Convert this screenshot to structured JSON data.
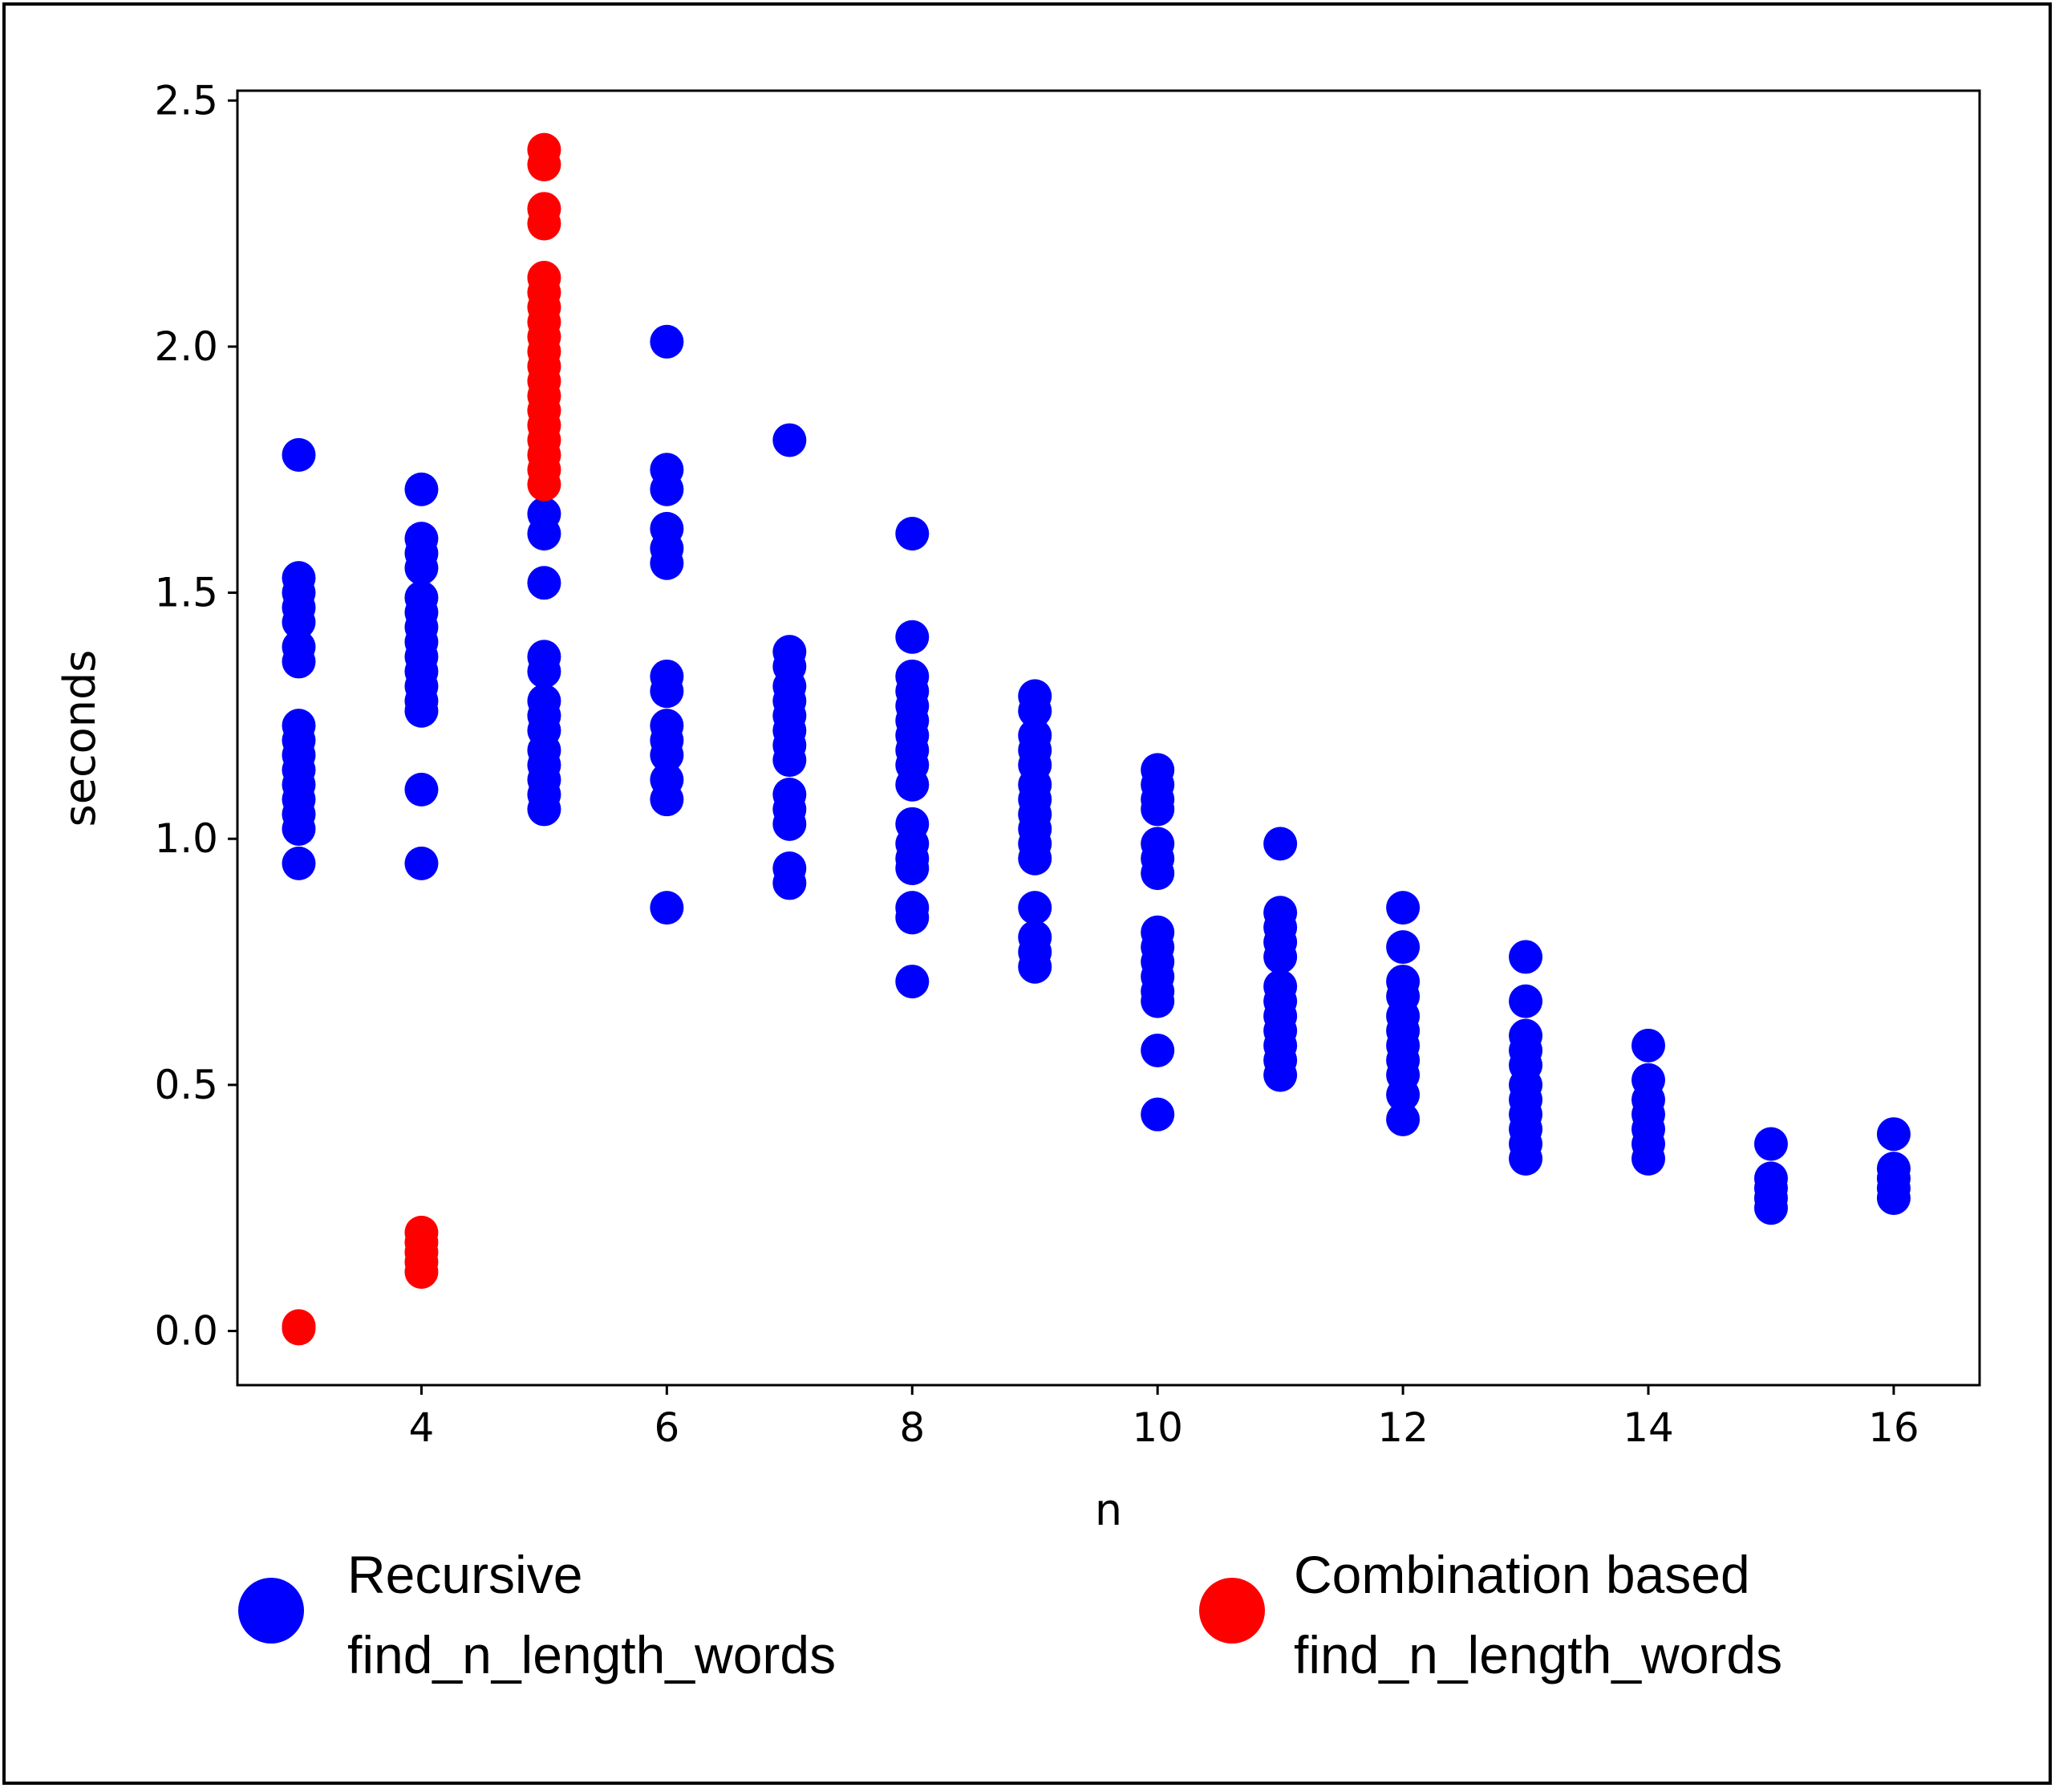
{
  "chart_data": {
    "type": "scatter",
    "title": "",
    "xlabel": "n",
    "ylabel": "seconds",
    "xlim": [
      2.5,
      16.7
    ],
    "ylim": [
      -0.11,
      2.52
    ],
    "xticks": [
      4,
      6,
      8,
      10,
      12,
      14,
      16
    ],
    "yticks": [
      0.0,
      0.5,
      1.0,
      1.5,
      2.0,
      2.5
    ],
    "xtick_labels": [
      "4",
      "6",
      "8",
      "10",
      "12",
      "14",
      "16"
    ],
    "ytick_labels": [
      "0.0",
      "0.5",
      "1.0",
      "1.5",
      "2.0",
      "2.5"
    ],
    "grid": false,
    "legend_position": "bottom",
    "series": [
      {
        "name": "Recursive find_n_length_words",
        "legend_lines": [
          "Recursive",
          "find_n_length_words"
        ],
        "color": "#0000ff",
        "points": [
          [
            3,
            1.78
          ],
          [
            3,
            1.53
          ],
          [
            3,
            1.5
          ],
          [
            3,
            1.47
          ],
          [
            3,
            1.44
          ],
          [
            3,
            1.39
          ],
          [
            3,
            1.36
          ],
          [
            3,
            1.23
          ],
          [
            3,
            1.2
          ],
          [
            3,
            1.17
          ],
          [
            3,
            1.14
          ],
          [
            3,
            1.11
          ],
          [
            3,
            1.08
          ],
          [
            3,
            1.05
          ],
          [
            3,
            1.02
          ],
          [
            3,
            0.95
          ],
          [
            4,
            1.71
          ],
          [
            4,
            1.61
          ],
          [
            4,
            1.58
          ],
          [
            4,
            1.55
          ],
          [
            4,
            1.49
          ],
          [
            4,
            1.46
          ],
          [
            4,
            1.43
          ],
          [
            4,
            1.4
          ],
          [
            4,
            1.37
          ],
          [
            4,
            1.34
          ],
          [
            4,
            1.31
          ],
          [
            4,
            1.28
          ],
          [
            4,
            1.26
          ],
          [
            4,
            1.1
          ],
          [
            4,
            0.95
          ],
          [
            5,
            1.66
          ],
          [
            5,
            1.62
          ],
          [
            5,
            1.52
          ],
          [
            5,
            1.37
          ],
          [
            5,
            1.34
          ],
          [
            5,
            1.28
          ],
          [
            5,
            1.25
          ],
          [
            5,
            1.22
          ],
          [
            5,
            1.18
          ],
          [
            5,
            1.15
          ],
          [
            5,
            1.12
          ],
          [
            5,
            1.09
          ],
          [
            5,
            1.06
          ],
          [
            6,
            2.01
          ],
          [
            6,
            1.75
          ],
          [
            6,
            1.71
          ],
          [
            6,
            1.63
          ],
          [
            6,
            1.59
          ],
          [
            6,
            1.56
          ],
          [
            6,
            1.33
          ],
          [
            6,
            1.3
          ],
          [
            6,
            1.23
          ],
          [
            6,
            1.2
          ],
          [
            6,
            1.17
          ],
          [
            6,
            1.12
          ],
          [
            6,
            1.08
          ],
          [
            6,
            0.86
          ],
          [
            7,
            1.81
          ],
          [
            7,
            1.38
          ],
          [
            7,
            1.35
          ],
          [
            7,
            1.31
          ],
          [
            7,
            1.28
          ],
          [
            7,
            1.25
          ],
          [
            7,
            1.22
          ],
          [
            7,
            1.19
          ],
          [
            7,
            1.16
          ],
          [
            7,
            1.09
          ],
          [
            7,
            1.06
          ],
          [
            7,
            1.03
          ],
          [
            7,
            0.94
          ],
          [
            7,
            0.91
          ],
          [
            8,
            1.62
          ],
          [
            8,
            1.41
          ],
          [
            8,
            1.33
          ],
          [
            8,
            1.3
          ],
          [
            8,
            1.27
          ],
          [
            8,
            1.24
          ],
          [
            8,
            1.21
          ],
          [
            8,
            1.18
          ],
          [
            8,
            1.15
          ],
          [
            8,
            1.11
          ],
          [
            8,
            1.03
          ],
          [
            8,
            0.99
          ],
          [
            8,
            0.96
          ],
          [
            8,
            0.94
          ],
          [
            8,
            0.86
          ],
          [
            8,
            0.84
          ],
          [
            8,
            0.71
          ],
          [
            9,
            1.29
          ],
          [
            9,
            1.26
          ],
          [
            9,
            1.21
          ],
          [
            9,
            1.18
          ],
          [
            9,
            1.15
          ],
          [
            9,
            1.11
          ],
          [
            9,
            1.08
          ],
          [
            9,
            1.05
          ],
          [
            9,
            1.02
          ],
          [
            9,
            0.99
          ],
          [
            9,
            0.96
          ],
          [
            9,
            0.86
          ],
          [
            9,
            0.8
          ],
          [
            9,
            0.77
          ],
          [
            9,
            0.74
          ],
          [
            10,
            1.14
          ],
          [
            10,
            1.11
          ],
          [
            10,
            1.08
          ],
          [
            10,
            1.06
          ],
          [
            10,
            0.99
          ],
          [
            10,
            0.96
          ],
          [
            10,
            0.93
          ],
          [
            10,
            0.81
          ],
          [
            10,
            0.78
          ],
          [
            10,
            0.75
          ],
          [
            10,
            0.72
          ],
          [
            10,
            0.69
          ],
          [
            10,
            0.67
          ],
          [
            10,
            0.57
          ],
          [
            10,
            0.44
          ],
          [
            11,
            0.99
          ],
          [
            11,
            0.85
          ],
          [
            11,
            0.82
          ],
          [
            11,
            0.79
          ],
          [
            11,
            0.76
          ],
          [
            11,
            0.7
          ],
          [
            11,
            0.67
          ],
          [
            11,
            0.64
          ],
          [
            11,
            0.61
          ],
          [
            11,
            0.58
          ],
          [
            11,
            0.55
          ],
          [
            11,
            0.52
          ],
          [
            12,
            0.86
          ],
          [
            12,
            0.78
          ],
          [
            12,
            0.71
          ],
          [
            12,
            0.68
          ],
          [
            12,
            0.64
          ],
          [
            12,
            0.61
          ],
          [
            12,
            0.58
          ],
          [
            12,
            0.55
          ],
          [
            12,
            0.52
          ],
          [
            12,
            0.48
          ],
          [
            12,
            0.43
          ],
          [
            13,
            0.76
          ],
          [
            13,
            0.67
          ],
          [
            13,
            0.6
          ],
          [
            13,
            0.57
          ],
          [
            13,
            0.54
          ],
          [
            13,
            0.5
          ],
          [
            13,
            0.47
          ],
          [
            13,
            0.44
          ],
          [
            13,
            0.41
          ],
          [
            13,
            0.38
          ],
          [
            13,
            0.35
          ],
          [
            14,
            0.58
          ],
          [
            14,
            0.51
          ],
          [
            14,
            0.47
          ],
          [
            14,
            0.44
          ],
          [
            14,
            0.41
          ],
          [
            14,
            0.38
          ],
          [
            14,
            0.35
          ],
          [
            15,
            0.38
          ],
          [
            15,
            0.31
          ],
          [
            15,
            0.29
          ],
          [
            15,
            0.27
          ],
          [
            15,
            0.25
          ],
          [
            16,
            0.4
          ],
          [
            16,
            0.33
          ],
          [
            16,
            0.31
          ],
          [
            16,
            0.29
          ],
          [
            16,
            0.27
          ]
        ]
      },
      {
        "name": "Combination based find_n_length_words",
        "legend_lines": [
          "Combination based",
          "find_n_length_words"
        ],
        "color": "#ff0000",
        "points": [
          [
            3,
            0.01
          ],
          [
            3,
            0.005
          ],
          [
            4,
            0.2
          ],
          [
            4,
            0.18
          ],
          [
            4,
            0.16
          ],
          [
            4,
            0.14
          ],
          [
            4,
            0.12
          ],
          [
            5,
            2.4
          ],
          [
            5,
            2.37
          ],
          [
            5,
            2.28
          ],
          [
            5,
            2.25
          ],
          [
            5,
            2.14
          ],
          [
            5,
            2.11
          ],
          [
            5,
            2.08
          ],
          [
            5,
            2.05
          ],
          [
            5,
            2.02
          ],
          [
            5,
            1.99
          ],
          [
            5,
            1.96
          ],
          [
            5,
            1.93
          ],
          [
            5,
            1.9
          ],
          [
            5,
            1.87
          ],
          [
            5,
            1.84
          ],
          [
            5,
            1.81
          ],
          [
            5,
            1.78
          ],
          [
            5,
            1.75
          ],
          [
            5,
            1.72
          ]
        ]
      }
    ]
  }
}
